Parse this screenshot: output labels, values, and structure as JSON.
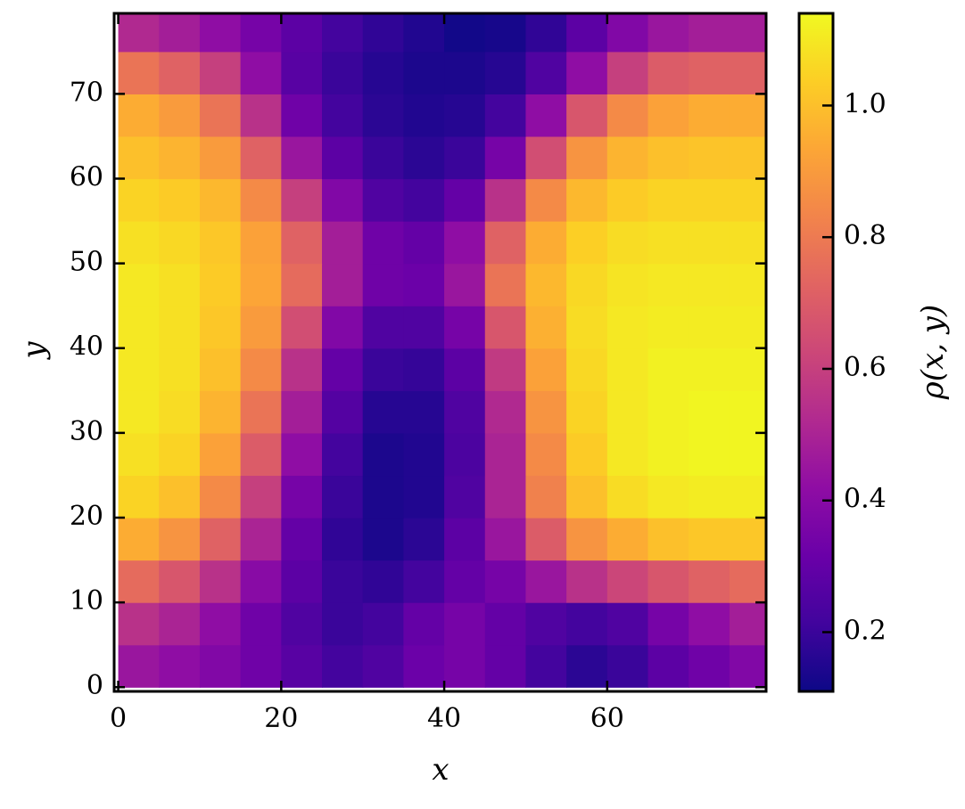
{
  "chart_data": {
    "type": "heatmap",
    "xlabel": "x",
    "ylabel": "y",
    "colorbar_label": "ρ(x, y)",
    "colormap": "plasma",
    "x": [
      2.5,
      7.5,
      12.5,
      17.5,
      22.5,
      27.5,
      32.5,
      37.5,
      42.5,
      47.5,
      52.5,
      57.5,
      62.5,
      67.5,
      72.5,
      77.5
    ],
    "y": [
      2.5,
      7.5,
      12.5,
      17.5,
      22.5,
      27.5,
      32.5,
      37.5,
      42.5,
      47.5,
      52.5,
      57.5,
      62.5,
      67.5,
      72.5,
      77.5
    ],
    "values": [
      [
        0.45,
        0.42,
        0.38,
        0.33,
        0.27,
        0.22,
        0.25,
        0.32,
        0.35,
        0.3,
        0.22,
        0.17,
        0.2,
        0.28,
        0.33,
        0.38
      ],
      [
        0.55,
        0.5,
        0.42,
        0.33,
        0.25,
        0.2,
        0.22,
        0.3,
        0.35,
        0.3,
        0.25,
        0.22,
        0.25,
        0.35,
        0.42,
        0.48
      ],
      [
        0.75,
        0.68,
        0.55,
        0.4,
        0.28,
        0.2,
        0.18,
        0.22,
        0.3,
        0.35,
        0.45,
        0.55,
        0.62,
        0.68,
        0.72,
        0.75
      ],
      [
        0.95,
        0.88,
        0.72,
        0.5,
        0.3,
        0.18,
        0.14,
        0.17,
        0.28,
        0.45,
        0.7,
        0.88,
        0.95,
        1.0,
        1.02,
        1.02
      ],
      [
        1.05,
        1.0,
        0.85,
        0.6,
        0.35,
        0.2,
        0.14,
        0.15,
        0.25,
        0.5,
        0.82,
        1.0,
        1.07,
        1.1,
        1.11,
        1.11
      ],
      [
        1.08,
        1.05,
        0.92,
        0.7,
        0.42,
        0.22,
        0.14,
        0.15,
        0.24,
        0.5,
        0.85,
        1.03,
        1.1,
        1.12,
        1.13,
        1.13
      ],
      [
        1.1,
        1.07,
        0.97,
        0.78,
        0.48,
        0.26,
        0.16,
        0.16,
        0.25,
        0.52,
        0.88,
        1.05,
        1.1,
        1.12,
        1.13,
        1.13
      ],
      [
        1.1,
        1.08,
        1.0,
        0.85,
        0.55,
        0.3,
        0.2,
        0.19,
        0.28,
        0.58,
        0.92,
        1.06,
        1.1,
        1.12,
        1.12,
        1.12
      ],
      [
        1.1,
        1.08,
        1.02,
        0.9,
        0.65,
        0.38,
        0.25,
        0.25,
        0.35,
        0.68,
        0.96,
        1.07,
        1.1,
        1.11,
        1.11,
        1.11
      ],
      [
        1.1,
        1.08,
        1.03,
        0.93,
        0.75,
        0.48,
        0.33,
        0.32,
        0.45,
        0.78,
        0.98,
        1.06,
        1.09,
        1.1,
        1.1,
        1.1
      ],
      [
        1.08,
        1.06,
        1.02,
        0.92,
        0.72,
        0.48,
        0.33,
        0.3,
        0.42,
        0.72,
        0.95,
        1.04,
        1.07,
        1.08,
        1.08,
        1.08
      ],
      [
        1.05,
        1.03,
        0.98,
        0.85,
        0.6,
        0.38,
        0.25,
        0.22,
        0.3,
        0.55,
        0.85,
        0.98,
        1.03,
        1.05,
        1.05,
        1.05
      ],
      [
        1.0,
        0.97,
        0.9,
        0.72,
        0.45,
        0.28,
        0.2,
        0.17,
        0.2,
        0.35,
        0.65,
        0.88,
        0.97,
        1.0,
        1.01,
        1.01
      ],
      [
        0.95,
        0.9,
        0.78,
        0.55,
        0.33,
        0.22,
        0.17,
        0.15,
        0.16,
        0.22,
        0.42,
        0.68,
        0.85,
        0.92,
        0.95,
        0.95
      ],
      [
        0.78,
        0.72,
        0.6,
        0.42,
        0.27,
        0.2,
        0.16,
        0.14,
        0.14,
        0.16,
        0.25,
        0.42,
        0.6,
        0.7,
        0.72,
        0.72
      ],
      [
        0.52,
        0.48,
        0.42,
        0.35,
        0.28,
        0.22,
        0.18,
        0.15,
        0.12,
        0.13,
        0.18,
        0.28,
        0.38,
        0.45,
        0.48,
        0.48
      ]
    ],
    "xlim": [
      -0.5,
      79.5
    ],
    "ylim": [
      -0.5,
      79.5
    ],
    "xticks": [
      0,
      20,
      40,
      60
    ],
    "yticks": [
      0,
      10,
      20,
      30,
      40,
      50,
      60,
      70
    ],
    "clim": [
      0.11,
      1.14
    ],
    "cticks": [
      0.2,
      0.4,
      0.6,
      0.8,
      {
        "value": 1,
        "label": "1.0"
      }
    ]
  }
}
